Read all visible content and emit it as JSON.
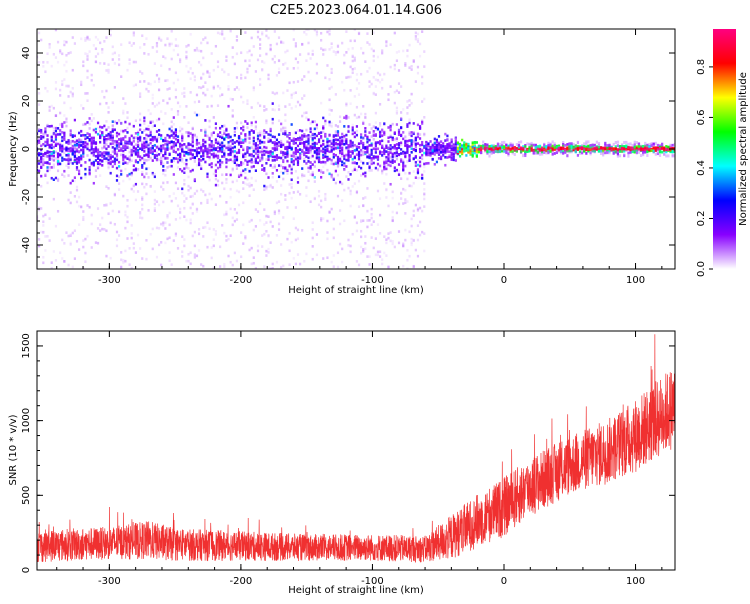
{
  "title": "C2E5.2023.064.01.14.G06",
  "chart_data": [
    {
      "type": "heatmap",
      "xlabel": "Height of straight line (km)",
      "ylabel": "Frequency (Hz)",
      "xlim": [
        -355,
        130
      ],
      "ylim": [
        -50,
        50
      ],
      "x_ticks": [
        -300,
        -200,
        -100,
        0,
        100
      ],
      "y_ticks": [
        -40,
        -20,
        0,
        20,
        40
      ],
      "colorbar": {
        "label": "Normalized spectral amplitude",
        "range": [
          0,
          0.95
        ],
        "ticks": [
          "0.0",
          "0.2",
          "0.4",
          "0.6",
          "0.8"
        ],
        "tick_values": [
          0.0,
          0.2,
          0.4,
          0.6,
          0.8
        ],
        "colormap": [
          "#ffffff",
          "#8800ff",
          "#0000ff",
          "#00ffff",
          "#00ff00",
          "#ffff00",
          "#ff0000",
          "#ff0080"
        ]
      },
      "features": {
        "noise_region_x": [
          -355,
          -60
        ],
        "noise_band_y": [
          -10,
          10
        ],
        "transition_x": [
          -60,
          -20
        ],
        "signal_line_x": [
          -20,
          130
        ],
        "signal_line_y": 0
      },
      "grid": false
    },
    {
      "type": "line",
      "xlabel": "Height of straight line (km)",
      "ylabel": "SNR (10 * v/v)",
      "xlim": [
        -355,
        130
      ],
      "ylim": [
        0,
        1600
      ],
      "x_ticks": [
        -300,
        -200,
        -100,
        0,
        100
      ],
      "y_ticks": [
        0,
        500,
        1000,
        1500
      ],
      "series": [
        {
          "color": "#f03030",
          "trend_x": [
            -355,
            -300,
            -270,
            -250,
            -200,
            -150,
            -100,
            -60,
            -40,
            -20,
            0,
            20,
            50,
            80,
            100,
            130
          ],
          "trend_mean": [
            160,
            180,
            200,
            170,
            160,
            150,
            150,
            140,
            220,
            330,
            420,
            560,
            700,
            800,
            900,
            1100
          ],
          "trend_amp": [
            110,
            110,
            130,
            110,
            100,
            90,
            90,
            90,
            150,
            180,
            200,
            200,
            200,
            220,
            250,
            280
          ]
        }
      ],
      "grid": false
    }
  ]
}
